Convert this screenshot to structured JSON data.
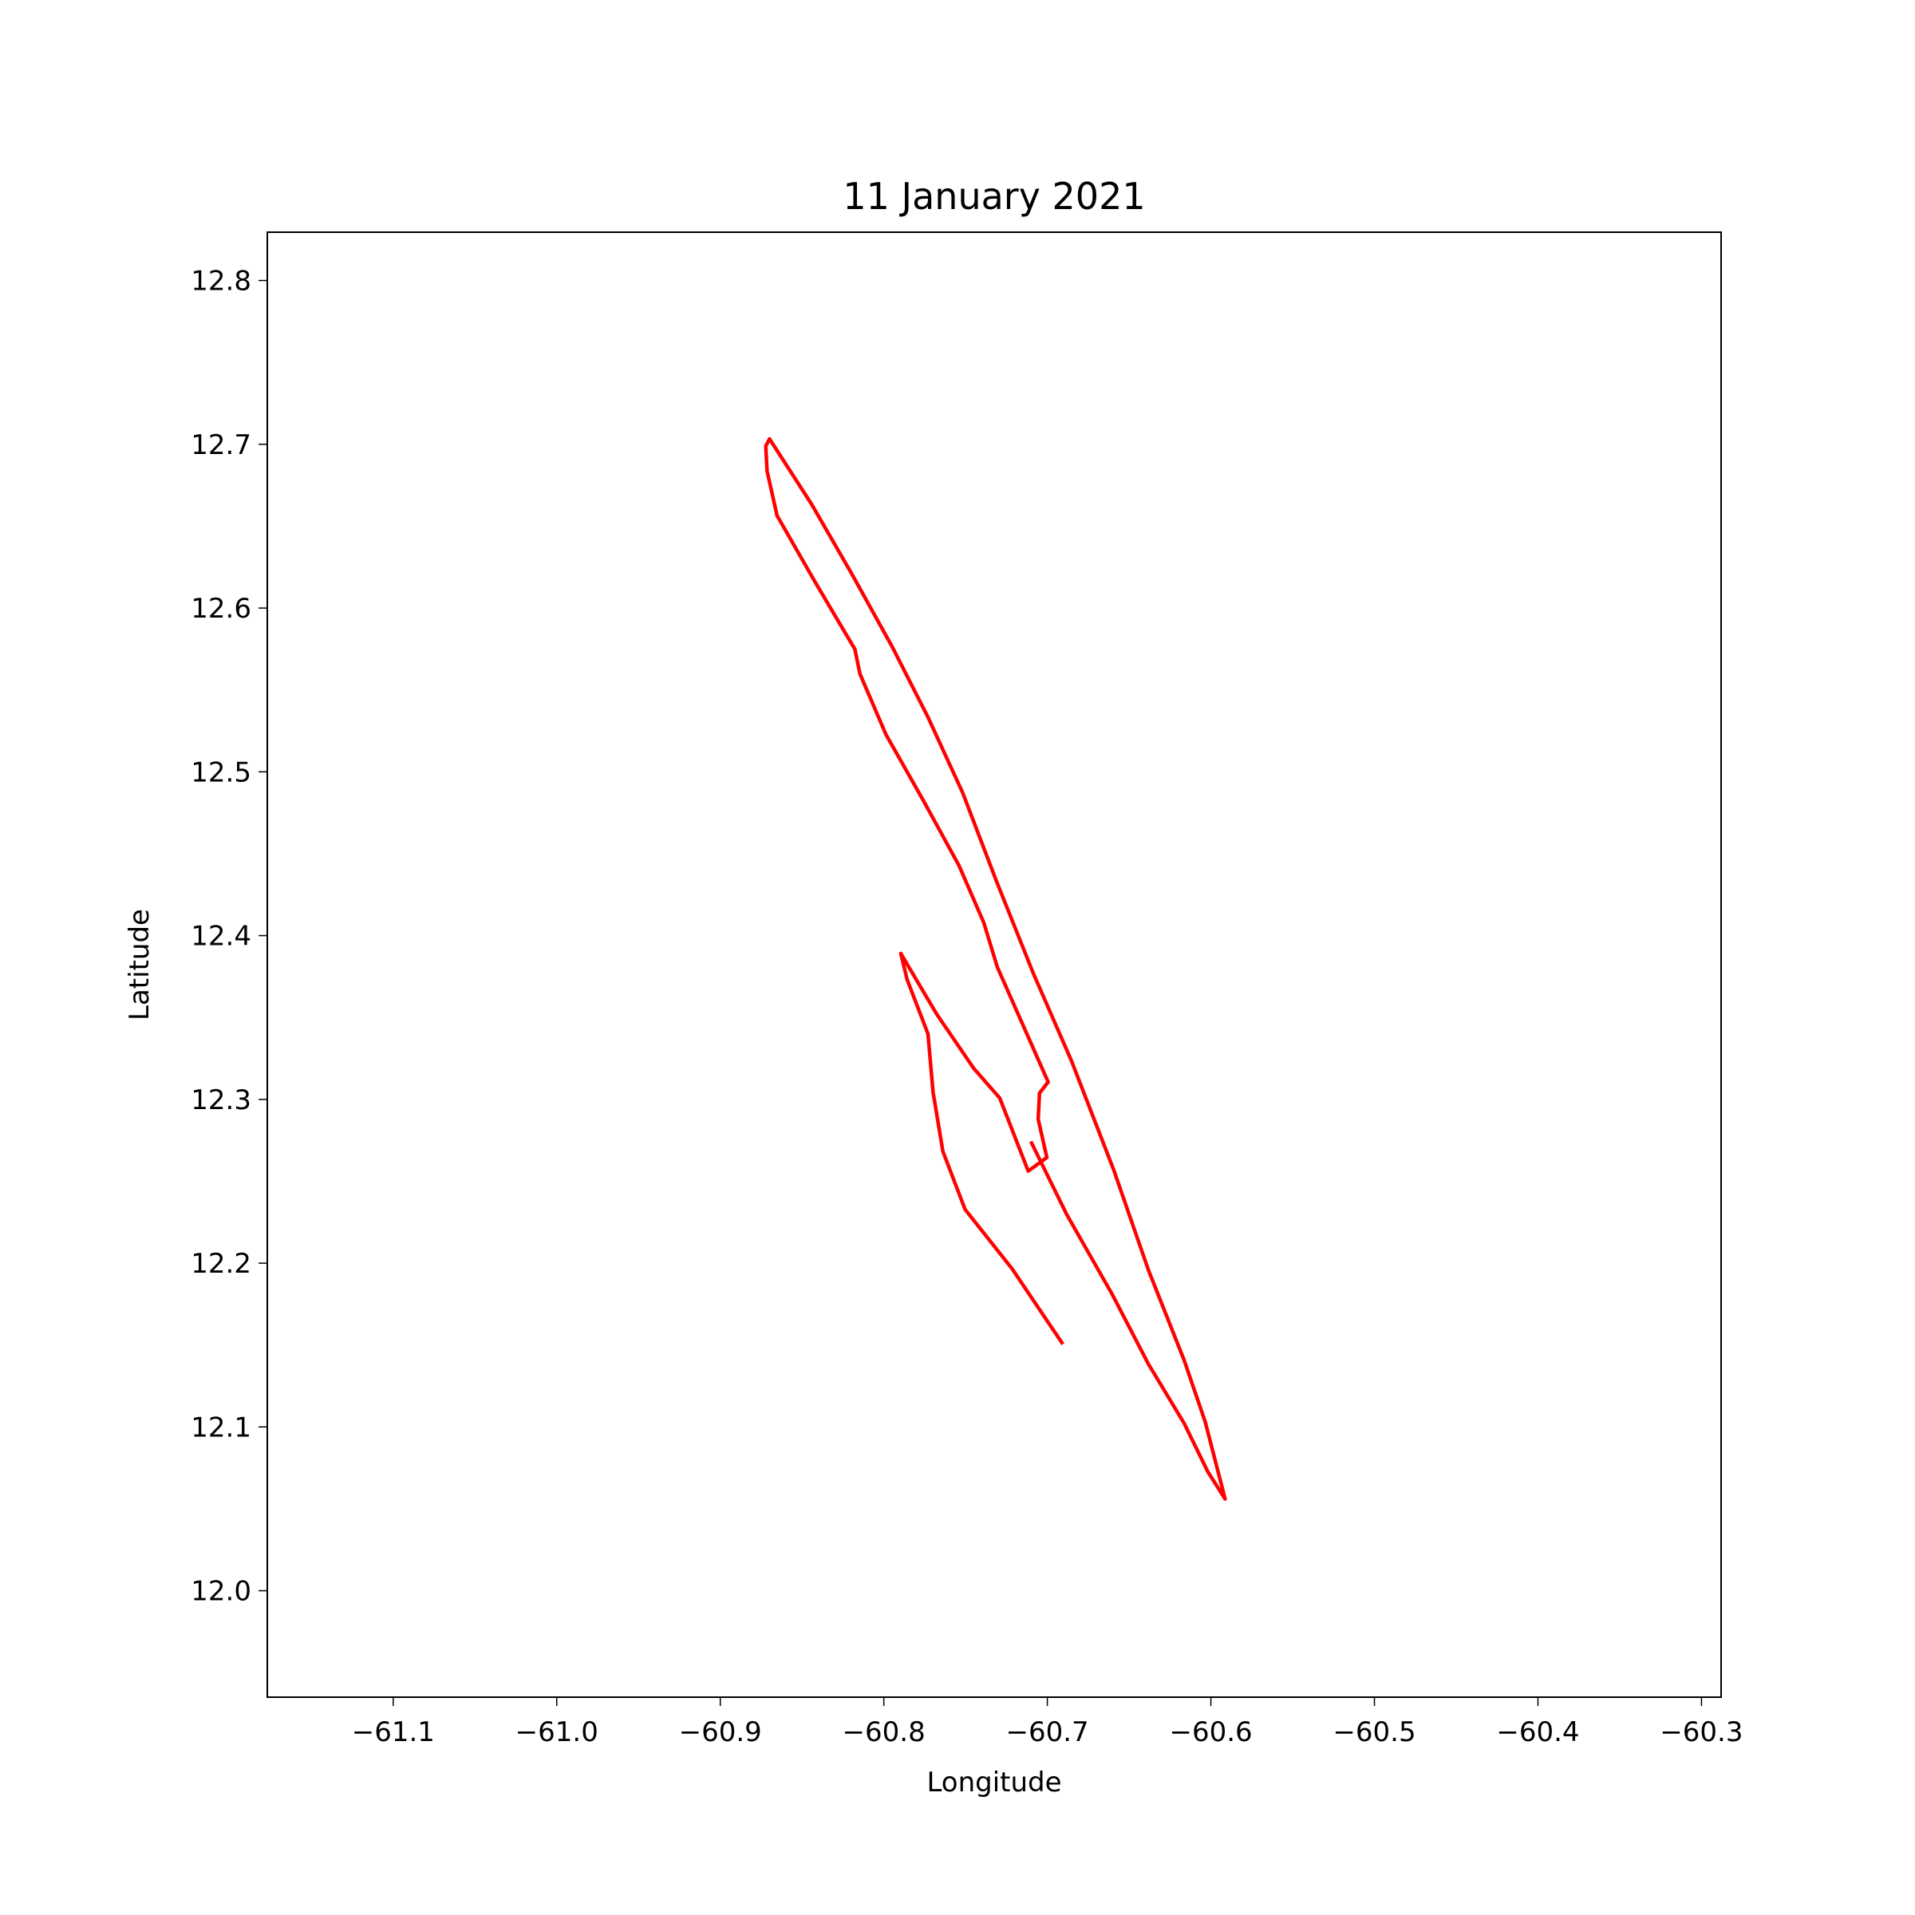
{
  "chart_data": {
    "type": "line",
    "title": "11 January 2021",
    "xlabel": "Longitude",
    "ylabel": "Latitude",
    "x": [
      -60.6905,
      -60.7215,
      -60.7503,
      -60.7639,
      -60.7699,
      -60.773,
      -60.7858,
      -60.7896,
      -60.7677,
      -60.745,
      -60.7291,
      -60.7117,
      -60.7003,
      -60.7056,
      -60.7048,
      -60.6995,
      -60.7306,
      -60.7389,
      -60.754,
      -60.776,
      -60.7987,
      -60.8146,
      -60.8177,
      -60.8419,
      -60.8653,
      -60.8714,
      -60.8722,
      -60.8699,
      -60.8441,
      -60.8192,
      -60.7949,
      -60.773,
      -60.7518,
      -60.7313,
      -60.7086,
      -60.6852,
      -60.6594,
      -60.6382,
      -60.6163,
      -60.6034,
      -60.5913,
      -60.6019,
      -60.6163,
      -60.6382,
      -60.6602,
      -60.6882,
      -60.7101
    ],
    "values": [
      12.1505,
      12.1965,
      12.2328,
      12.2683,
      12.3045,
      12.34,
      12.3733,
      12.3891,
      12.3521,
      12.3189,
      12.3008,
      12.2562,
      12.2645,
      12.2879,
      12.3038,
      12.3106,
      12.3808,
      12.408,
      12.4427,
      12.4828,
      12.5228,
      12.5598,
      12.5749,
      12.6157,
      12.6565,
      12.6837,
      12.6988,
      12.7033,
      12.6633,
      12.6202,
      12.5764,
      12.5334,
      12.4873,
      12.4337,
      12.377,
      12.3234,
      12.2569,
      12.1958,
      12.1406,
      12.1029,
      12.056,
      12.0727,
      12.1021,
      12.1384,
      12.1807,
      12.2298,
      12.2743
    ],
    "color": "#ff0000",
    "xlim": [
      -61.177,
      -60.288
    ],
    "ylim": [
      11.935,
      12.8295
    ],
    "xticks": [
      {
        "value": -61.1,
        "label": "−61.1"
      },
      {
        "value": -61.0,
        "label": "−61.0"
      },
      {
        "value": -60.9,
        "label": "−60.9"
      },
      {
        "value": -60.8,
        "label": "−60.8"
      },
      {
        "value": -60.7,
        "label": "−60.7"
      },
      {
        "value": -60.6,
        "label": "−60.6"
      },
      {
        "value": -60.5,
        "label": "−60.5"
      },
      {
        "value": -60.4,
        "label": "−60.4"
      },
      {
        "value": -60.3,
        "label": "−60.3"
      }
    ],
    "yticks": [
      {
        "value": 12,
        "label": "12.0"
      },
      12.1,
      12.2,
      12.3,
      12.4,
      12.5,
      12.6,
      12.7,
      12.8
    ]
  }
}
